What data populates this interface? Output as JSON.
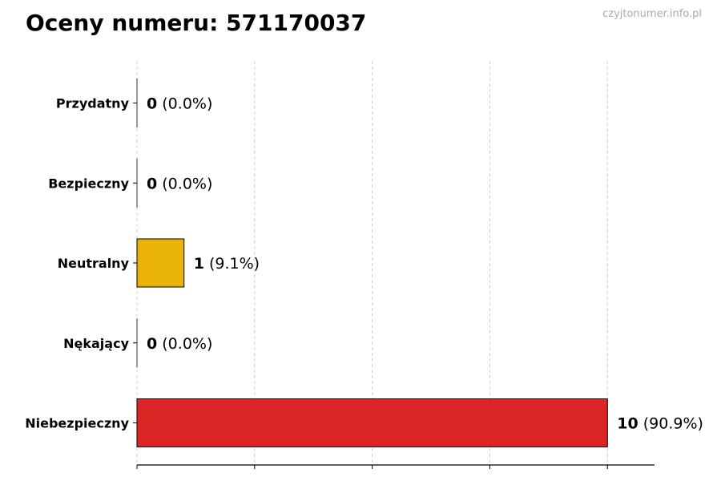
{
  "chart_data": {
    "type": "bar",
    "orientation": "horizontal",
    "title": "Oceny numeru: 571170037",
    "watermark": "czyjtonumer.info.pl",
    "categories": [
      "Przydatny",
      "Bezpieczny",
      "Neutralny",
      "Nękający",
      "Niebezpieczny"
    ],
    "values": [
      0,
      0,
      1,
      0,
      10
    ],
    "percent_labels": [
      "(0.0%)",
      "(0.0%)",
      "(9.1%)",
      "(0.0%)",
      "(90.9%)"
    ],
    "colors": [
      "#22a04a",
      "#2f7fd0",
      "#EAB30A",
      "#7a3fb0",
      "#DC2626"
    ],
    "xlim": [
      0,
      11
    ],
    "x_gridlines": [
      0,
      2.5,
      5,
      7.5,
      10
    ],
    "grid": "vertical dashed",
    "xlabel": "",
    "ylabel": ""
  }
}
